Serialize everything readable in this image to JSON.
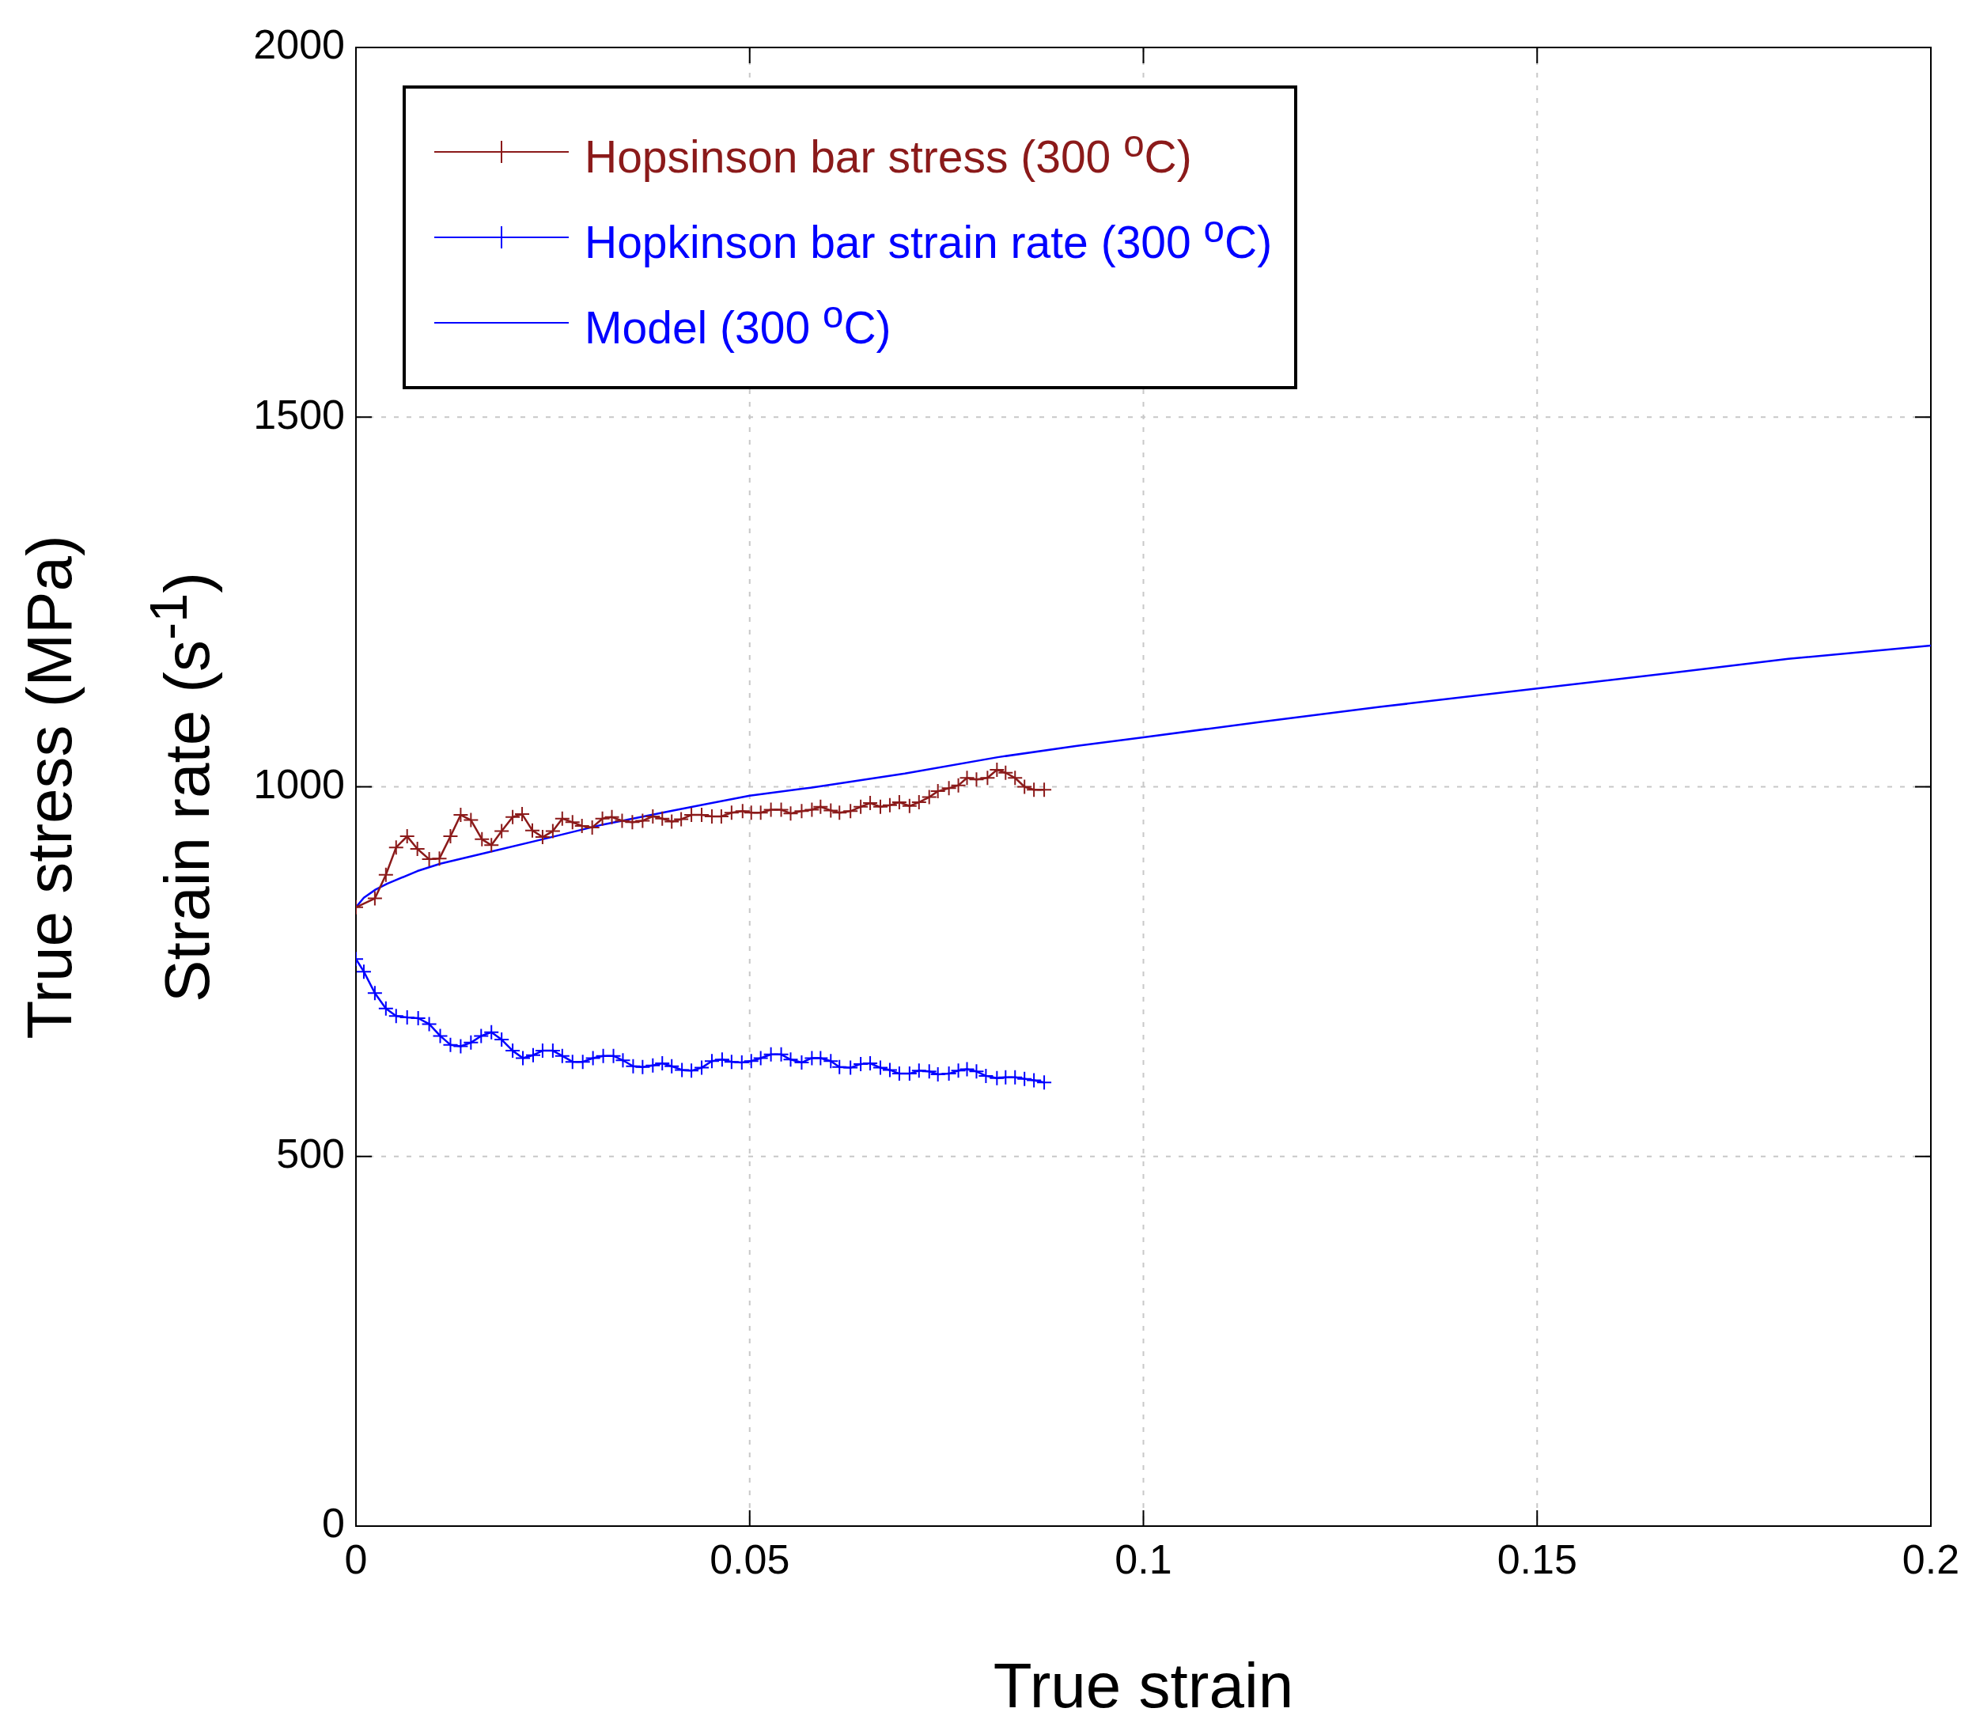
{
  "chart_data": {
    "type": "line",
    "xlabel": "True strain",
    "ylabel": "True stress (MPa)\nStrain rate  (s$^{-1}$)",
    "xlim": [
      0,
      0.2
    ],
    "ylim": [
      0,
      2000
    ],
    "xticks": [
      0,
      0.05,
      0.1,
      0.15,
      0.2
    ],
    "yticks": [
      0,
      500,
      1000,
      1500,
      2000
    ],
    "grid": true,
    "legend": "top left",
    "line_style": "solid",
    "series": [
      {
        "name": "Hopsinson bar stress (300 $^{o}$C)",
        "color": "#8b1a1a",
        "marker": "cross",
        "x": [
          0,
          0.0024,
          0.0038,
          0.0051,
          0.0065,
          0.0078,
          0.0093,
          0.0106,
          0.012,
          0.0133,
          0.0146,
          0.016,
          0.0172,
          0.0185,
          0.0199,
          0.0211,
          0.0224,
          0.0237,
          0.025,
          0.0262,
          0.0275,
          0.0287,
          0.03,
          0.0313,
          0.0325,
          0.0338,
          0.0351,
          0.0364,
          0.0377,
          0.0389,
          0.0401,
          0.0413,
          0.0426,
          0.0439,
          0.0452,
          0.0464,
          0.0477,
          0.0491,
          0.0502,
          0.0514,
          0.0527,
          0.054,
          0.0552,
          0.0566,
          0.0579,
          0.059,
          0.0603,
          0.0614,
          0.0628,
          0.0641,
          0.0653,
          0.0666,
          0.0678,
          0.069,
          0.0703,
          0.0715,
          0.0728,
          0.0739,
          0.0753,
          0.0765,
          0.0776,
          0.0788,
          0.0802,
          0.0814,
          0.0825,
          0.0837,
          0.0849,
          0.0861,
          0.0874
        ],
        "values": [
          837,
          849,
          881,
          918,
          933,
          916,
          902,
          903,
          933,
          962,
          955,
          929,
          921,
          940,
          959,
          963,
          941,
          932,
          940,
          957,
          952,
          947,
          945,
          957,
          959,
          954,
          952,
          954,
          960,
          957,
          953,
          956,
          962,
          962,
          960,
          960,
          965,
          967,
          965,
          965,
          969,
          969,
          964,
          967,
          969,
          973,
          968,
          965,
          967,
          973,
          978,
          973,
          975,
          979,
          974,
          979,
          986,
          994,
          998,
          1002,
          1012,
          1010,
          1012,
          1023,
          1019,
          1012,
          1000,
          996,
          996
        ]
      },
      {
        "name": "Hopkinson bar strain rate (300 $^{o}$C)",
        "color": "#0000ff",
        "marker": "cross",
        "x": [
          0,
          0.001,
          0.0024,
          0.0038,
          0.0051,
          0.0065,
          0.0079,
          0.0093,
          0.0107,
          0.012,
          0.0133,
          0.0146,
          0.0159,
          0.0172,
          0.0185,
          0.0199,
          0.0212,
          0.0225,
          0.0237,
          0.025,
          0.0262,
          0.0275,
          0.0288,
          0.0301,
          0.0314,
          0.0327,
          0.0339,
          0.0352,
          0.0364,
          0.0377,
          0.0389,
          0.0401,
          0.0414,
          0.0426,
          0.0439,
          0.0452,
          0.0465,
          0.0477,
          0.049,
          0.0502,
          0.0514,
          0.0527,
          0.054,
          0.0552,
          0.0566,
          0.0579,
          0.059,
          0.0603,
          0.0614,
          0.0628,
          0.0641,
          0.0653,
          0.0666,
          0.0678,
          0.069,
          0.0703,
          0.0715,
          0.0728,
          0.0739,
          0.0753,
          0.0765,
          0.0776,
          0.0788,
          0.08,
          0.0814,
          0.0825,
          0.0837,
          0.0849,
          0.0861,
          0.0874
        ],
        "values": [
          767,
          750,
          721,
          700,
          690,
          688,
          687,
          679,
          663,
          651,
          649,
          654,
          663,
          668,
          658,
          643,
          633,
          637,
          643,
          643,
          636,
          628,
          628,
          633,
          636,
          636,
          630,
          622,
          621,
          623,
          626,
          622,
          617,
          616,
          620,
          629,
          631,
          628,
          627,
          629,
          633,
          638,
          638,
          631,
          627,
          633,
          633,
          629,
          621,
          620,
          625,
          626,
          620,
          617,
          612,
          612,
          616,
          615,
          611,
          612,
          616,
          618,
          615,
          609,
          606,
          607,
          607,
          605,
          603,
          600
        ]
      },
      {
        "name": "Model (300 $^{o}$C)",
        "color": "#0000ff",
        "marker": "none",
        "x": [
          0,
          0.001,
          0.0025,
          0.004,
          0.0078,
          0.0107,
          0.0166,
          0.0237,
          0.0314,
          0.0403,
          0.05,
          0.0579,
          0.0697,
          0.0815,
          0.0914,
          0.1,
          0.1151,
          0.13,
          0.15,
          0.1671,
          0.1819,
          0.2
        ],
        "values": [
          837,
          850,
          861,
          869,
          886,
          896,
          911,
          929,
          949,
          968,
          988,
          999,
          1018,
          1040,
          1055,
          1067,
          1088,
          1108,
          1133,
          1154,
          1173,
          1191
        ]
      }
    ]
  }
}
